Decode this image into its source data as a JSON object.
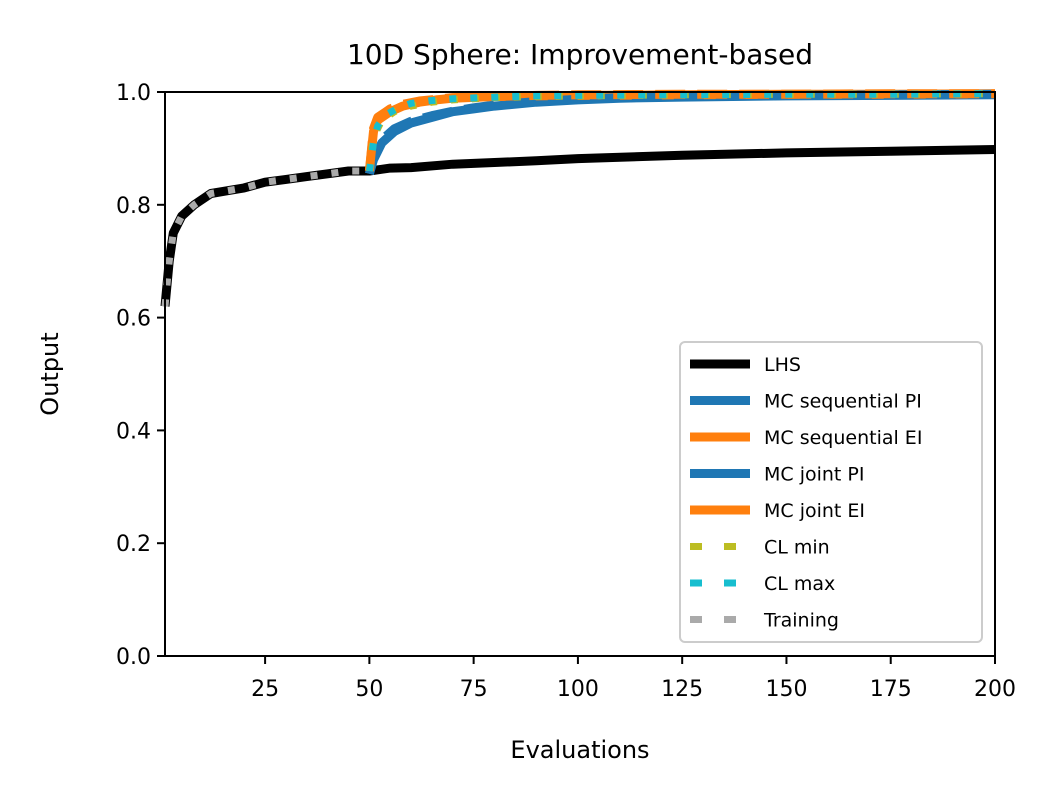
{
  "chart_data": {
    "type": "line",
    "title": "10D Sphere: Improvement-based",
    "xlabel": "Evaluations",
    "ylabel": "Output",
    "xlim": [
      1,
      200
    ],
    "ylim": [
      0.0,
      1.0
    ],
    "xticks": [
      25,
      50,
      75,
      100,
      125,
      150,
      175,
      200
    ],
    "yticks": [
      0.0,
      0.2,
      0.4,
      0.6,
      0.8,
      1.0
    ],
    "xtick_labels": [
      "25",
      "50",
      "75",
      "100",
      "125",
      "150",
      "175",
      "200"
    ],
    "ytick_labels": [
      "0.0",
      "0.2",
      "0.4",
      "0.6",
      "0.8",
      "1.0"
    ],
    "grid": false,
    "legend_position": "lower-right",
    "series": [
      {
        "name": "LHS",
        "color": "#000000",
        "style": "solid",
        "x": [
          1,
          2,
          3,
          5,
          8,
          12,
          16,
          20,
          25,
          30,
          35,
          40,
          45,
          50,
          55,
          60,
          70,
          80,
          90,
          100,
          125,
          150,
          175,
          200
        ],
        "y": [
          0.62,
          0.7,
          0.75,
          0.78,
          0.8,
          0.82,
          0.825,
          0.83,
          0.84,
          0.845,
          0.85,
          0.855,
          0.86,
          0.86,
          0.865,
          0.866,
          0.872,
          0.875,
          0.878,
          0.882,
          0.888,
          0.892,
          0.895,
          0.898
        ]
      },
      {
        "name": "MC sequential PI",
        "color": "#1f77b4",
        "style": "solid",
        "x": [
          50,
          51,
          53,
          56,
          60,
          65,
          70,
          75,
          80,
          90,
          100,
          110,
          125,
          150,
          175,
          200
        ],
        "y": [
          0.855,
          0.88,
          0.91,
          0.93,
          0.945,
          0.955,
          0.965,
          0.97,
          0.975,
          0.982,
          0.986,
          0.989,
          0.991,
          0.993,
          0.994,
          0.995
        ]
      },
      {
        "name": "MC sequential EI",
        "color": "#ff7f0e",
        "style": "solid",
        "x": [
          50,
          51,
          52,
          55,
          58,
          62,
          66,
          70,
          80,
          90,
          100,
          125,
          150,
          175,
          200
        ],
        "y": [
          0.86,
          0.93,
          0.95,
          0.965,
          0.975,
          0.982,
          0.986,
          0.989,
          0.992,
          0.993,
          0.994,
          0.995,
          0.996,
          0.996,
          0.997
        ]
      },
      {
        "name": "MC joint PI",
        "color": "#1f77b4",
        "style": "dashed",
        "x": [
          50,
          51,
          53,
          56,
          60,
          65,
          70,
          75,
          80,
          90,
          100,
          110,
          125,
          150,
          175,
          200
        ],
        "y": [
          0.855,
          0.885,
          0.915,
          0.935,
          0.948,
          0.958,
          0.966,
          0.972,
          0.977,
          0.983,
          0.987,
          0.99,
          0.992,
          0.994,
          0.995,
          0.996
        ]
      },
      {
        "name": "MC joint EI",
        "color": "#ff7f0e",
        "style": "dashed",
        "x": [
          50,
          51,
          52,
          55,
          58,
          62,
          66,
          70,
          80,
          90,
          100,
          125,
          150,
          175,
          200
        ],
        "y": [
          0.86,
          0.935,
          0.955,
          0.97,
          0.978,
          0.984,
          0.987,
          0.99,
          0.992,
          0.994,
          0.995,
          0.996,
          0.996,
          0.997,
          0.997
        ]
      },
      {
        "name": "CL min",
        "color": "#bcbd22",
        "style": "dotted",
        "x": [
          50,
          51,
          53,
          56,
          60,
          65,
          70,
          80,
          90,
          100,
          125,
          150,
          175,
          200
        ],
        "y": [
          0.86,
          0.92,
          0.95,
          0.965,
          0.975,
          0.982,
          0.986,
          0.99,
          0.992,
          0.993,
          0.995,
          0.996,
          0.996,
          0.997
        ]
      },
      {
        "name": "CL max",
        "color": "#17becf",
        "style": "dotted",
        "x": [
          50,
          51,
          52,
          54,
          57,
          60,
          65,
          70,
          80,
          90,
          100,
          125,
          150,
          175,
          200
        ],
        "y": [
          0.86,
          0.91,
          0.94,
          0.96,
          0.972,
          0.98,
          0.985,
          0.988,
          0.991,
          0.993,
          0.994,
          0.995,
          0.996,
          0.996,
          0.997
        ]
      },
      {
        "name": "Training",
        "color": "#aaaaaa",
        "style": "dotted",
        "x": [
          1,
          2,
          3,
          5,
          8,
          12,
          16,
          20,
          25,
          30,
          35,
          40,
          45,
          50
        ],
        "y": [
          0.62,
          0.7,
          0.75,
          0.78,
          0.8,
          0.82,
          0.825,
          0.83,
          0.84,
          0.845,
          0.85,
          0.855,
          0.86,
          0.86
        ]
      }
    ]
  }
}
